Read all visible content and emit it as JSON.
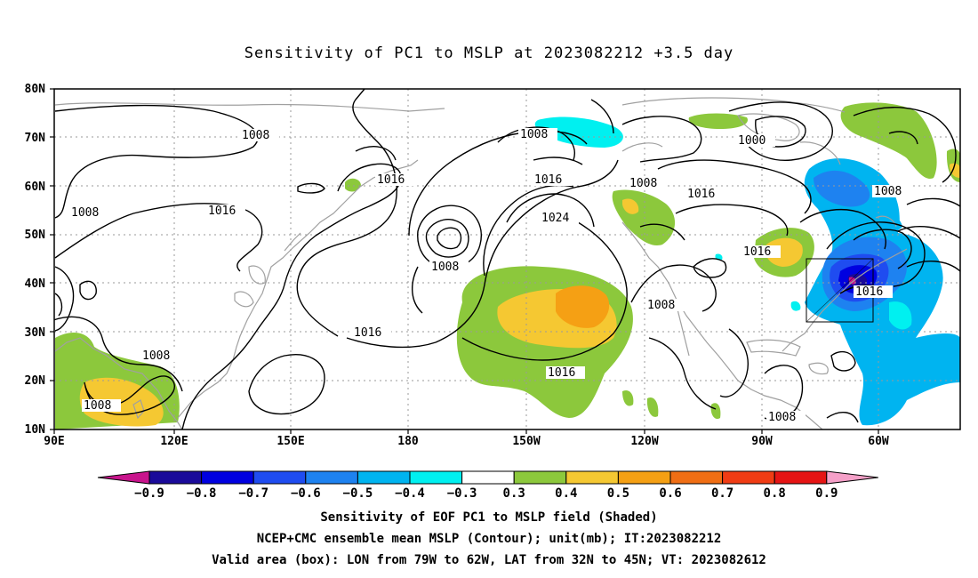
{
  "title": "Sensitivity of PC1 to MSLP at 2023082212 +3.5 day",
  "map": {
    "lon_ticks": [
      "90E",
      "120E",
      "150E",
      "180",
      "150W",
      "120W",
      "90W",
      "60W"
    ],
    "lat_ticks": [
      "80N",
      "70N",
      "60N",
      "50N",
      "40N",
      "30N",
      "20N",
      "10N"
    ],
    "contour_labels": [
      "1008",
      "1008",
      "1016",
      "1016",
      "1008",
      "1016",
      "1024",
      "1008",
      "1016",
      "1000",
      "1008",
      "1008",
      "1016",
      "1008",
      "1016",
      "1016",
      "1008",
      "1008",
      "1008",
      "1016"
    ]
  },
  "colorbar": {
    "labels": [
      "-0.9",
      "-0.8",
      "-0.7",
      "-0.6",
      "-0.5",
      "-0.4",
      "-0.3",
      "0.3",
      "0.4",
      "0.5",
      "0.6",
      "0.7",
      "0.8",
      "0.9"
    ],
    "colors": [
      "#1a0a9a",
      "#0000e0",
      "#1f4cf0",
      "#1e82f0",
      "#00b4f0",
      "#00f0f0",
      "#ffffff",
      "#8cc83c",
      "#f5c832",
      "#f5a014",
      "#f06e14",
      "#f03c14",
      "#e61414"
    ],
    "low_arrow_color": "#c8148c",
    "high_arrow_color": "#f5a0c8"
  },
  "captions": [
    "Sensitivity of EOF PC1 to MSLP field (Shaded)",
    "NCEP+CMC ensemble mean MSLP (Contour); unit(mb); IT:2023082212",
    "Valid area (box): LON from 79W to 62W, LAT from 32N to 45N; VT: 2023082612"
  ]
}
